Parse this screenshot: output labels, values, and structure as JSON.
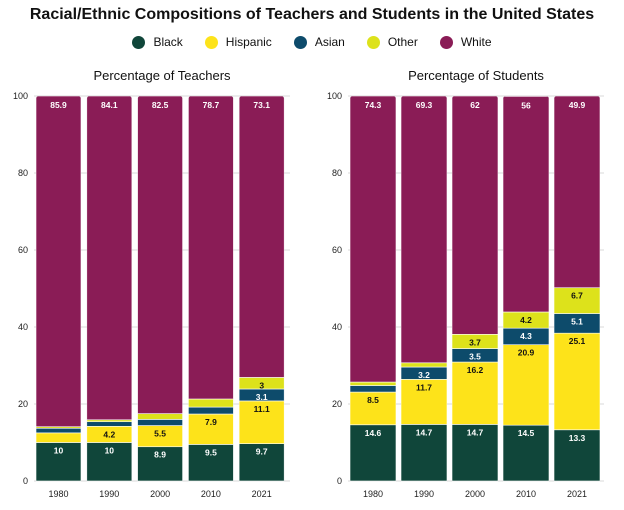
{
  "title": "Racial/Ethnic Compositions of Teachers and Students in the United States",
  "legend": [
    {
      "name": "Black",
      "color": "#10463a"
    },
    {
      "name": "Hispanic",
      "color": "#fde31a"
    },
    {
      "name": "Asian",
      "color": "#0d4b6b"
    },
    {
      "name": "Other",
      "color": "#dde21b"
    },
    {
      "name": "White",
      "color": "#8a1c56"
    }
  ],
  "chart_data": [
    {
      "type": "bar",
      "stacked": true,
      "title": "Percentage of Teachers",
      "xlabel": "",
      "ylabel": "",
      "ylim": [
        0,
        100
      ],
      "yticks": [
        0,
        20,
        40,
        60,
        80,
        100
      ],
      "categories": [
        "1980",
        "1990",
        "2000",
        "2010",
        "2021"
      ],
      "series": [
        {
          "name": "Black",
          "values": [
            10,
            10,
            8.9,
            9.5,
            9.7
          ],
          "labels": [
            "10",
            "10",
            "8.9",
            "9.5",
            "9.7"
          ]
        },
        {
          "name": "Hispanic",
          "values": [
            2.5,
            4.2,
            5.5,
            7.9,
            11.1
          ],
          "labels": [
            "",
            "4.2",
            "5.5",
            "7.9",
            "11.1"
          ]
        },
        {
          "name": "Asian",
          "values": [
            1.2,
            1.2,
            1.6,
            1.8,
            3.1
          ],
          "labels": [
            "",
            "",
            "",
            "",
            "3.1"
          ]
        },
        {
          "name": "Other",
          "values": [
            0.4,
            0.5,
            1.5,
            2.1,
            3
          ],
          "labels": [
            "",
            "",
            "",
            "",
            "3"
          ]
        },
        {
          "name": "White",
          "values": [
            85.9,
            84.1,
            82.5,
            78.7,
            73.1
          ],
          "labels": [
            "85.9",
            "84.1",
            "82.5",
            "78.7",
            "73.1"
          ]
        }
      ]
    },
    {
      "type": "bar",
      "stacked": true,
      "title": "Percentage of Students",
      "xlabel": "",
      "ylabel": "",
      "ylim": [
        0,
        100
      ],
      "yticks": [
        0,
        20,
        40,
        60,
        80,
        100
      ],
      "categories": [
        "1980",
        "1990",
        "2000",
        "2010",
        "2021"
      ],
      "series": [
        {
          "name": "Black",
          "values": [
            14.6,
            14.7,
            14.7,
            14.5,
            13.3
          ],
          "labels": [
            "14.6",
            "14.7",
            "14.7",
            "14.5",
            "13.3"
          ]
        },
        {
          "name": "Hispanic",
          "values": [
            8.5,
            11.7,
            16.2,
            20.9,
            25.1
          ],
          "labels": [
            "8.5",
            "11.7",
            "16.2",
            "20.9",
            "25.1"
          ]
        },
        {
          "name": "Asian",
          "values": [
            1.7,
            3.2,
            3.5,
            4.3,
            5.1
          ],
          "labels": [
            "",
            "3.2",
            "3.5",
            "4.3",
            "5.1"
          ]
        },
        {
          "name": "Other",
          "values": [
            0.9,
            1.1,
            3.7,
            4.2,
            6.7
          ],
          "labels": [
            "",
            "",
            "3.7",
            "4.2",
            "6.7"
          ]
        },
        {
          "name": "White",
          "values": [
            74.3,
            69.3,
            62,
            56,
            49.9
          ],
          "labels": [
            "74.3",
            "69.3",
            "62",
            "56",
            "49.9"
          ]
        }
      ]
    }
  ]
}
